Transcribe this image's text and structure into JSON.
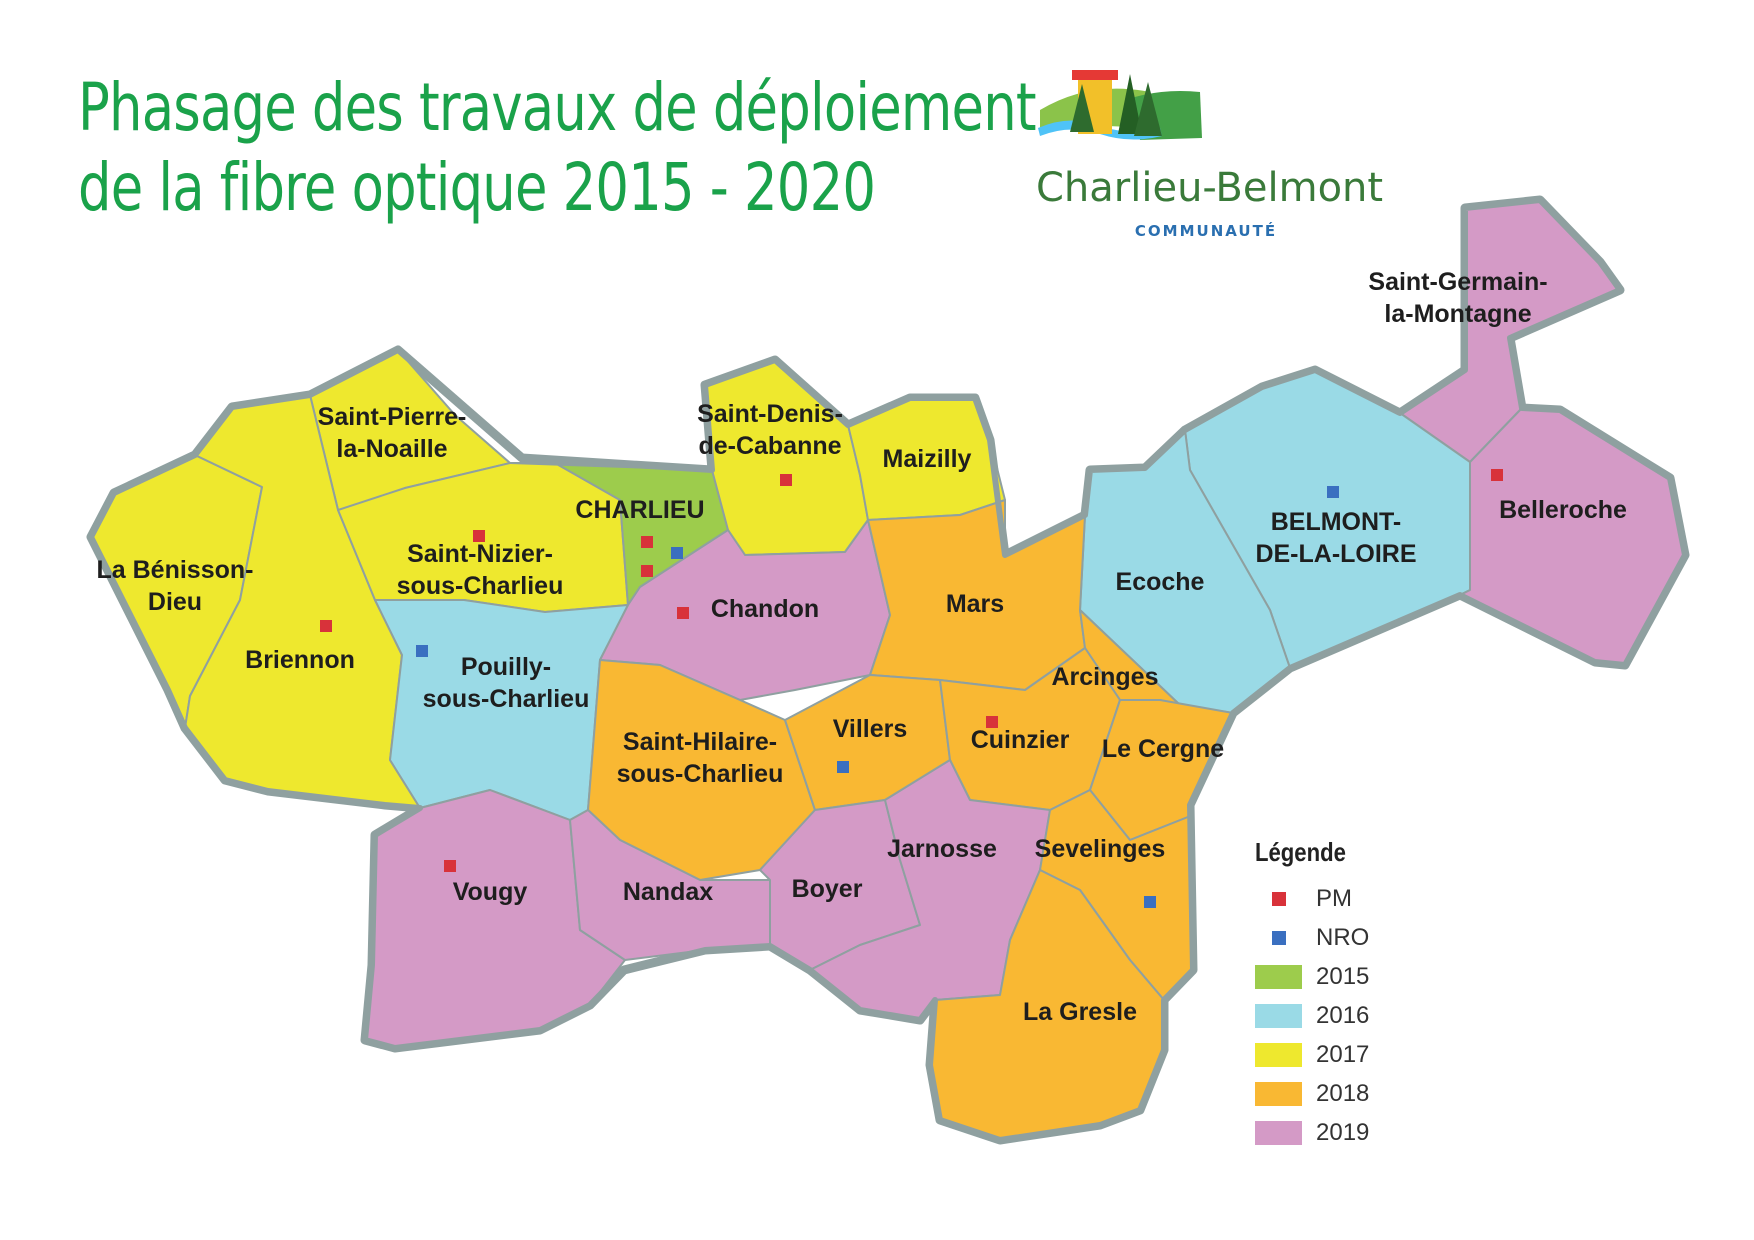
{
  "title": {
    "line1": "Phasage des travaux de déploiement",
    "line2": "de la fibre optique 2015 - 2020"
  },
  "logo": {
    "name": "Charlieu-Belmont",
    "subtitle": "COMMUNAUTÉ"
  },
  "colors": {
    "2015": "#9dcc4c",
    "2016": "#9adae6",
    "2017": "#eee82e",
    "2018": "#f9b833",
    "2019": "#d49ac6",
    "PM": "#d8323a",
    "NRO": "#3a6fc0",
    "border": "#8fa0a0",
    "title": "#1aa24a"
  },
  "communes": [
    {
      "id": "saint-pierre",
      "name_lines": [
        "Saint-Pierre-",
        "la-Noaille"
      ],
      "phase": "2017"
    },
    {
      "id": "benisson",
      "name_lines": [
        "La Bénisson-",
        "Dieu"
      ],
      "phase": "2017"
    },
    {
      "id": "briennon",
      "name_lines": [
        "Briennon"
      ],
      "phase": "2017"
    },
    {
      "id": "saint-nizier",
      "name_lines": [
        "Saint-Nizier-",
        "sous-Charlieu"
      ],
      "phase": "2017"
    },
    {
      "id": "charlieu",
      "name_lines": [
        "CHARLIEU"
      ],
      "phase": "2015"
    },
    {
      "id": "saint-denis",
      "name_lines": [
        "Saint-Denis-",
        "de-Cabanne"
      ],
      "phase": "2017"
    },
    {
      "id": "maizilly",
      "name_lines": [
        "Maizilly"
      ],
      "phase": "2017"
    },
    {
      "id": "saint-germain",
      "name_lines": [
        "Saint-Germain-",
        "la-Montagne"
      ],
      "phase": "2019"
    },
    {
      "id": "belmont",
      "name_lines": [
        "BELMONT-",
        "DE-LA-LOIRE"
      ],
      "phase": "2016"
    },
    {
      "id": "belleroche",
      "name_lines": [
        "Belleroche"
      ],
      "phase": "2019"
    },
    {
      "id": "ecoche",
      "name_lines": [
        "Ecoche"
      ],
      "phase": "2016"
    },
    {
      "id": "pouilly",
      "name_lines": [
        "Pouilly-",
        "sous-Charlieu"
      ],
      "phase": "2016"
    },
    {
      "id": "chandon",
      "name_lines": [
        "Chandon"
      ],
      "phase": "2019"
    },
    {
      "id": "mars",
      "name_lines": [
        "Mars"
      ],
      "phase": "2018"
    },
    {
      "id": "arcinges",
      "name_lines": [
        "Arcinges"
      ],
      "phase": "2018"
    },
    {
      "id": "saint-hilaire",
      "name_lines": [
        "Saint-Hilaire-",
        "sous-Charlieu"
      ],
      "phase": "2018"
    },
    {
      "id": "villers",
      "name_lines": [
        "Villers"
      ],
      "phase": "2018"
    },
    {
      "id": "cuinzier",
      "name_lines": [
        "Cuinzier"
      ],
      "phase": "2018"
    },
    {
      "id": "le-cergne",
      "name_lines": [
        "Le Cergne"
      ],
      "phase": "2018"
    },
    {
      "id": "vougy",
      "name_lines": [
        "Vougy"
      ],
      "phase": "2019"
    },
    {
      "id": "nandax",
      "name_lines": [
        "Nandax"
      ],
      "phase": "2019"
    },
    {
      "id": "boyer",
      "name_lines": [
        "Boyer"
      ],
      "phase": "2019"
    },
    {
      "id": "jarnosse",
      "name_lines": [
        "Jarnosse"
      ],
      "phase": "2019"
    },
    {
      "id": "sevelinges",
      "name_lines": [
        "Sevelinges"
      ],
      "phase": "2018"
    },
    {
      "id": "la-gresle",
      "name_lines": [
        "La Gresle"
      ],
      "phase": "2018"
    }
  ],
  "markers": [
    {
      "type": "PM",
      "commune": "saint-nizier"
    },
    {
      "type": "PM",
      "commune": "charlieu"
    },
    {
      "type": "PM",
      "commune": "charlieu"
    },
    {
      "type": "NRO",
      "commune": "charlieu"
    },
    {
      "type": "PM",
      "commune": "saint-denis"
    },
    {
      "type": "PM",
      "commune": "briennon"
    },
    {
      "type": "NRO",
      "commune": "pouilly"
    },
    {
      "type": "PM",
      "commune": "chandon"
    },
    {
      "type": "NRO",
      "commune": "belmont"
    },
    {
      "type": "PM",
      "commune": "belleroche"
    },
    {
      "type": "PM",
      "commune": "cuinzier"
    },
    {
      "type": "NRO",
      "commune": "villers"
    },
    {
      "type": "PM",
      "commune": "vougy"
    },
    {
      "type": "NRO",
      "commune": "sevelinges"
    }
  ],
  "legend": {
    "title": "Légende",
    "items": [
      {
        "label": "PM",
        "kind": "marker",
        "color": "#d8323a"
      },
      {
        "label": "NRO",
        "kind": "marker",
        "color": "#3a6fc0"
      },
      {
        "label": "2015",
        "kind": "swatch",
        "color": "#9dcc4c"
      },
      {
        "label": "2016",
        "kind": "swatch",
        "color": "#9adae6"
      },
      {
        "label": "2017",
        "kind": "swatch",
        "color": "#eee82e"
      },
      {
        "label": "2018",
        "kind": "swatch",
        "color": "#f9b833"
      },
      {
        "label": "2019",
        "kind": "swatch",
        "color": "#d49ac6"
      }
    ]
  }
}
